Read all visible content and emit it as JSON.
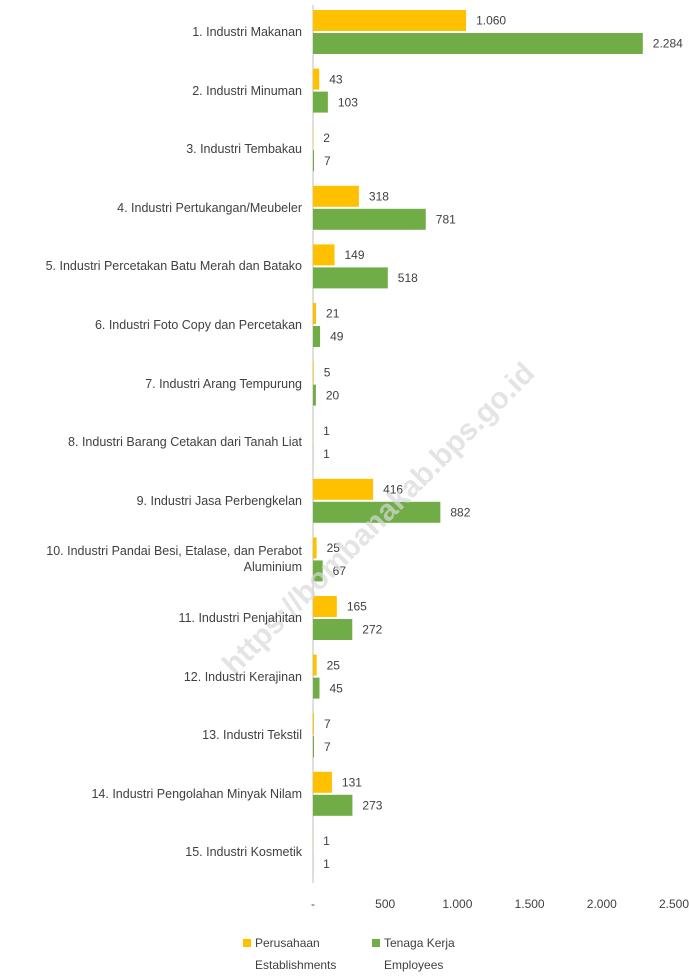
{
  "chart_data": {
    "type": "hbar",
    "categories": [
      "1. Industri Makanan",
      "2. Industri Minuman",
      "3. Industri Tembakau",
      "4. Industri Pertukangan/Meubeler",
      "5. Industri Percetakan Batu Merah dan Batako",
      "6. Industri Foto Copy dan Percetakan",
      "7. Industri Arang Tempurung",
      "8. Industri Barang Cetakan dari Tanah Liat",
      "9. Industri Jasa Perbengkelan",
      "10. Industri Pandai Besi, Etalase, dan Perabot Aluminium",
      "11. Industri Penjahitan",
      "12. Industri Kerajinan",
      "13. Industri Tekstil",
      "14. Industri Pengolahan Minyak Nilam",
      "15. Industri Kosmetik"
    ],
    "series": [
      {
        "name": "Perusahaan",
        "name_en": "Establishments",
        "color": "#FFC000",
        "values": [
          1060,
          43,
          2,
          318,
          149,
          21,
          5,
          1,
          416,
          25,
          165,
          25,
          7,
          131,
          1
        ],
        "value_labels": [
          "1.060",
          "43",
          "2",
          "318",
          "149",
          "21",
          "5",
          "1",
          "416",
          "25",
          "165",
          "25",
          "7",
          "131",
          "1"
        ]
      },
      {
        "name": "Tenaga Kerja",
        "name_en": "Employees",
        "color": "#70AD47",
        "values": [
          2284,
          103,
          7,
          781,
          518,
          49,
          20,
          1,
          882,
          67,
          272,
          45,
          7,
          273,
          1
        ],
        "value_labels": [
          "2.284",
          "103",
          "7",
          "781",
          "518",
          "49",
          "20",
          "1",
          "882",
          "67",
          "272",
          "45",
          "7",
          "273",
          "1"
        ]
      }
    ],
    "xlim": [
      0,
      2500
    ],
    "xticks": [
      {
        "value": 0,
        "label": "-"
      },
      500,
      {
        "value": 1000,
        "label": "1.000"
      },
      {
        "value": 1500,
        "label": "1.500"
      },
      {
        "value": 2000,
        "label": "2.000"
      },
      {
        "value": 2500,
        "label": "2.500"
      }
    ],
    "watermark": "https://bombanakab.bps.go.id"
  }
}
